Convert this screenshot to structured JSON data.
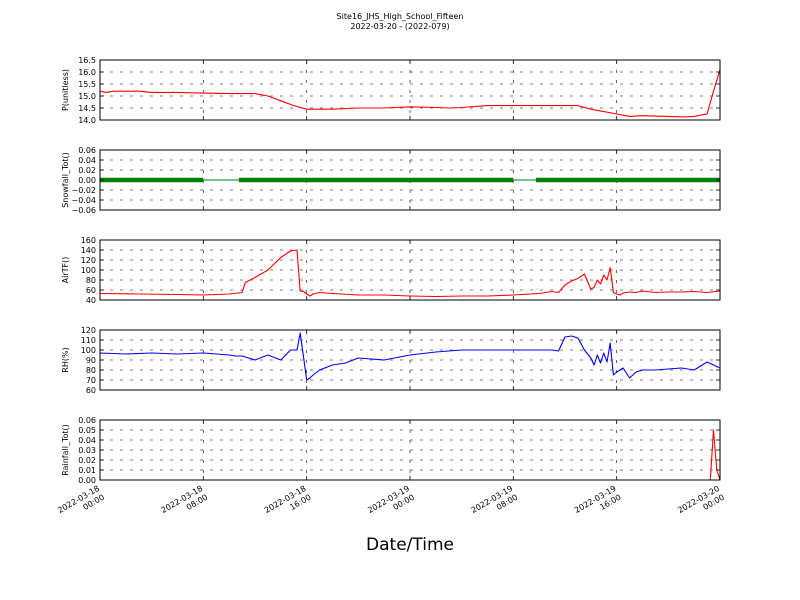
{
  "figure": {
    "title_line1": "Site16_JHS_High_School_Fifteen",
    "title_line2": "2022-03-20 - (2022-079)",
    "xlabel": "Date/Time",
    "x_ticks": [
      {
        "line1": "2022-03-18",
        "line2": "00:00"
      },
      {
        "line1": "2022-03-18",
        "line2": "08:00"
      },
      {
        "line1": "2022-03-18",
        "line2": "16:00"
      },
      {
        "line1": "2022-03-19",
        "line2": "00:00"
      },
      {
        "line1": "2022-03-19",
        "line2": "08:00"
      },
      {
        "line1": "2022-03-19",
        "line2": "16:00"
      },
      {
        "line1": "2022-03-20",
        "line2": "00:00"
      }
    ]
  },
  "colors": {
    "red": "#ff0000",
    "green": "#008000",
    "blue": "#0000ff"
  },
  "chart_data": [
    {
      "type": "line",
      "ylabel": "P(unitless)",
      "ylim": [
        14.0,
        16.5
      ],
      "yticks": [
        "14.0",
        "14.5",
        "15.0",
        "15.5",
        "16.0",
        "16.5"
      ],
      "xlim": [
        "2022-03-18 00:00",
        "2022-03-20 00:00"
      ],
      "grid": true,
      "series": [
        {
          "color": "red",
          "style": "line",
          "x": [
            "2022-03-18 00:00",
            "2022-03-18 00:30",
            "2022-03-18 01:00",
            "2022-03-18 02:00",
            "2022-03-18 03:00",
            "2022-03-18 04:00",
            "2022-03-18 05:00",
            "2022-03-18 06:00",
            "2022-03-18 08:00",
            "2022-03-18 10:00",
            "2022-03-18 11:00",
            "2022-03-18 12:00",
            "2022-03-18 13:00",
            "2022-03-18 14:00",
            "2022-03-18 15:00",
            "2022-03-18 16:00",
            "2022-03-18 17:00",
            "2022-03-18 18:00",
            "2022-03-18 20:00",
            "2022-03-18 22:00",
            "2022-03-19 00:00",
            "2022-03-19 02:00",
            "2022-03-19 03:00",
            "2022-03-19 04:00",
            "2022-03-19 06:00",
            "2022-03-19 08:00",
            "2022-03-19 10:00",
            "2022-03-19 12:00",
            "2022-03-19 13:00",
            "2022-03-19 14:00",
            "2022-03-19 15:00",
            "2022-03-19 16:00",
            "2022-03-19 17:00",
            "2022-03-19 18:00",
            "2022-03-19 20:00",
            "2022-03-19 21:00",
            "2022-03-19 22:00",
            "2022-03-19 22:30",
            "2022-03-19 23:00",
            "2022-03-19 23:30",
            "2022-03-20 00:00"
          ],
          "y": [
            15.2,
            15.15,
            15.2,
            15.2,
            15.2,
            15.15,
            15.15,
            15.15,
            15.12,
            15.1,
            15.1,
            15.1,
            15.0,
            14.8,
            14.6,
            14.45,
            14.45,
            14.45,
            14.5,
            14.5,
            14.55,
            14.52,
            14.5,
            14.52,
            14.6,
            14.6,
            14.6,
            14.6,
            14.6,
            14.45,
            14.35,
            14.25,
            14.15,
            14.18,
            14.15,
            14.13,
            14.15,
            14.2,
            14.25,
            15.2,
            16.1
          ]
        }
      ]
    },
    {
      "type": "scatter",
      "ylabel": "Snowfall_Tot()",
      "ylim": [
        -0.06,
        0.06
      ],
      "yticks": [
        "−0.06",
        "−0.04",
        "−0.02",
        "0.00",
        "0.02",
        "0.04",
        "0.06"
      ],
      "xlim": [
        "2022-03-18 00:00",
        "2022-03-20 00:00"
      ],
      "grid": true,
      "series": [
        {
          "color": "green",
          "style": "markers",
          "segments": [
            {
              "start": "2022-03-18 00:00",
              "end": "2022-03-18 08:00",
              "value": 0.0,
              "markers": true
            },
            {
              "start": "2022-03-18 08:00",
              "end": "2022-03-18 10:45",
              "value": 0.0,
              "markers": false
            },
            {
              "start": "2022-03-18 10:45",
              "end": "2022-03-19 08:00",
              "value": 0.0,
              "markers": true
            },
            {
              "start": "2022-03-19 08:00",
              "end": "2022-03-19 09:45",
              "value": 0.0,
              "markers": false
            },
            {
              "start": "2022-03-19 09:45",
              "end": "2022-03-20 00:00",
              "value": 0.0,
              "markers": true
            }
          ]
        }
      ]
    },
    {
      "type": "line",
      "ylabel": "AirTF()",
      "ylim": [
        40,
        160
      ],
      "yticks": [
        "40",
        "60",
        "80",
        "100",
        "120",
        "140",
        "160"
      ],
      "xlim": [
        "2022-03-18 00:00",
        "2022-03-20 00:00"
      ],
      "grid": true,
      "series": [
        {
          "color": "red",
          "style": "line",
          "x": [
            "2022-03-18 00:00",
            "2022-03-18 03:00",
            "2022-03-18 06:00",
            "2022-03-18 08:00",
            "2022-03-18 10:00",
            "2022-03-18 11:00",
            "2022-03-18 11:15",
            "2022-03-18 12:00",
            "2022-03-18 13:00",
            "2022-03-18 14:00",
            "2022-03-18 14:45",
            "2022-03-18 15:15",
            "2022-03-18 15:30",
            "2022-03-18 15:45",
            "2022-03-18 16:00",
            "2022-03-18 16:15",
            "2022-03-18 16:30",
            "2022-03-18 17:00",
            "2022-03-18 18:00",
            "2022-03-18 20:00",
            "2022-03-18 22:00",
            "2022-03-19 00:00",
            "2022-03-19 02:00",
            "2022-03-19 04:00",
            "2022-03-19 06:00",
            "2022-03-19 08:00",
            "2022-03-19 10:00",
            "2022-03-19 11:00",
            "2022-03-19 11:30",
            "2022-03-19 12:00",
            "2022-03-19 12:30",
            "2022-03-19 13:00",
            "2022-03-19 13:30",
            "2022-03-19 14:00",
            "2022-03-19 14:15",
            "2022-03-19 14:30",
            "2022-03-19 14:45",
            "2022-03-19 15:00",
            "2022-03-19 15:15",
            "2022-03-19 15:30",
            "2022-03-19 15:45",
            "2022-03-19 16:00",
            "2022-03-19 16:15",
            "2022-03-19 16:30",
            "2022-03-19 17:00",
            "2022-03-19 17:30",
            "2022-03-19 18:00",
            "2022-03-19 19:00",
            "2022-03-19 20:00",
            "2022-03-19 21:00",
            "2022-03-19 22:00",
            "2022-03-19 23:00",
            "2022-03-20 00:00"
          ],
          "y": [
            53,
            52,
            51,
            50,
            52,
            55,
            75,
            85,
            100,
            125,
            138,
            140,
            58,
            57,
            52,
            48,
            52,
            55,
            53,
            50,
            50,
            48,
            47,
            48,
            48,
            50,
            53,
            57,
            55,
            70,
            78,
            83,
            92,
            62,
            65,
            80,
            72,
            90,
            80,
            105,
            55,
            52,
            50,
            54,
            56,
            55,
            58,
            55,
            56,
            56,
            57,
            55,
            58
          ]
        }
      ]
    },
    {
      "type": "line",
      "ylabel": "RH(%)",
      "ylim": [
        60,
        120
      ],
      "yticks": [
        "60",
        "70",
        "80",
        "90",
        "100",
        "110",
        "120"
      ],
      "xlim": [
        "2022-03-18 00:00",
        "2022-03-20 00:00"
      ],
      "grid": true,
      "series": [
        {
          "color": "blue",
          "style": "line",
          "x": [
            "2022-03-18 00:00",
            "2022-03-18 02:00",
            "2022-03-18 04:00",
            "2022-03-18 06:00",
            "2022-03-18 08:00",
            "2022-03-18 10:00",
            "2022-03-18 10:30",
            "2022-03-18 11:00",
            "2022-03-18 12:00",
            "2022-03-18 13:00",
            "2022-03-18 14:00",
            "2022-03-18 14:45",
            "2022-03-18 15:15",
            "2022-03-18 15:30",
            "2022-03-18 16:00",
            "2022-03-18 16:15",
            "2022-03-18 16:30",
            "2022-03-18 17:00",
            "2022-03-18 18:00",
            "2022-03-18 19:00",
            "2022-03-18 20:00",
            "2022-03-18 22:00",
            "2022-03-19 00:00",
            "2022-03-19 02:00",
            "2022-03-19 04:00",
            "2022-03-19 06:00",
            "2022-03-19 08:00",
            "2022-03-19 10:00",
            "2022-03-19 11:00",
            "2022-03-19 11:30",
            "2022-03-19 12:00",
            "2022-03-19 12:30",
            "2022-03-19 13:00",
            "2022-03-19 13:30",
            "2022-03-19 14:00",
            "2022-03-19 14:15",
            "2022-03-19 14:30",
            "2022-03-19 14:45",
            "2022-03-19 15:00",
            "2022-03-19 15:15",
            "2022-03-19 15:30",
            "2022-03-19 15:45",
            "2022-03-19 16:00",
            "2022-03-19 16:15",
            "2022-03-19 16:30",
            "2022-03-19 17:00",
            "2022-03-19 17:30",
            "2022-03-19 18:00",
            "2022-03-19 19:00",
            "2022-03-19 21:00",
            "2022-03-19 22:00",
            "2022-03-19 23:00",
            "2022-03-20 00:00"
          ],
          "y": [
            97,
            96,
            97,
            96,
            97,
            95,
            94,
            94,
            90,
            95,
            90,
            100,
            100,
            117,
            70,
            72,
            75,
            80,
            85,
            87,
            92,
            90,
            95,
            98,
            100,
            100,
            100,
            100,
            100,
            99,
            113,
            114,
            112,
            100,
            92,
            85,
            95,
            87,
            97,
            88,
            107,
            75,
            78,
            80,
            82,
            72,
            78,
            80,
            80,
            82,
            80,
            88,
            82
          ]
        }
      ]
    },
    {
      "type": "line",
      "ylabel": "Rainfall_Tot()",
      "ylim": [
        0.0,
        0.06
      ],
      "yticks": [
        "0.00",
        "0.01",
        "0.02",
        "0.03",
        "0.04",
        "0.05",
        "0.06"
      ],
      "xlim": [
        "2022-03-18 00:00",
        "2022-03-20 00:00"
      ],
      "grid": true,
      "series": [
        {
          "color": "red",
          "style": "line",
          "x": [
            "2022-03-18 00:00",
            "2022-03-19 23:00",
            "2022-03-19 23:15",
            "2022-03-19 23:30",
            "2022-03-19 23:45",
            "2022-03-20 00:00"
          ],
          "y": [
            0,
            0,
            0,
            0.05,
            0.01,
            0
          ]
        }
      ]
    }
  ]
}
